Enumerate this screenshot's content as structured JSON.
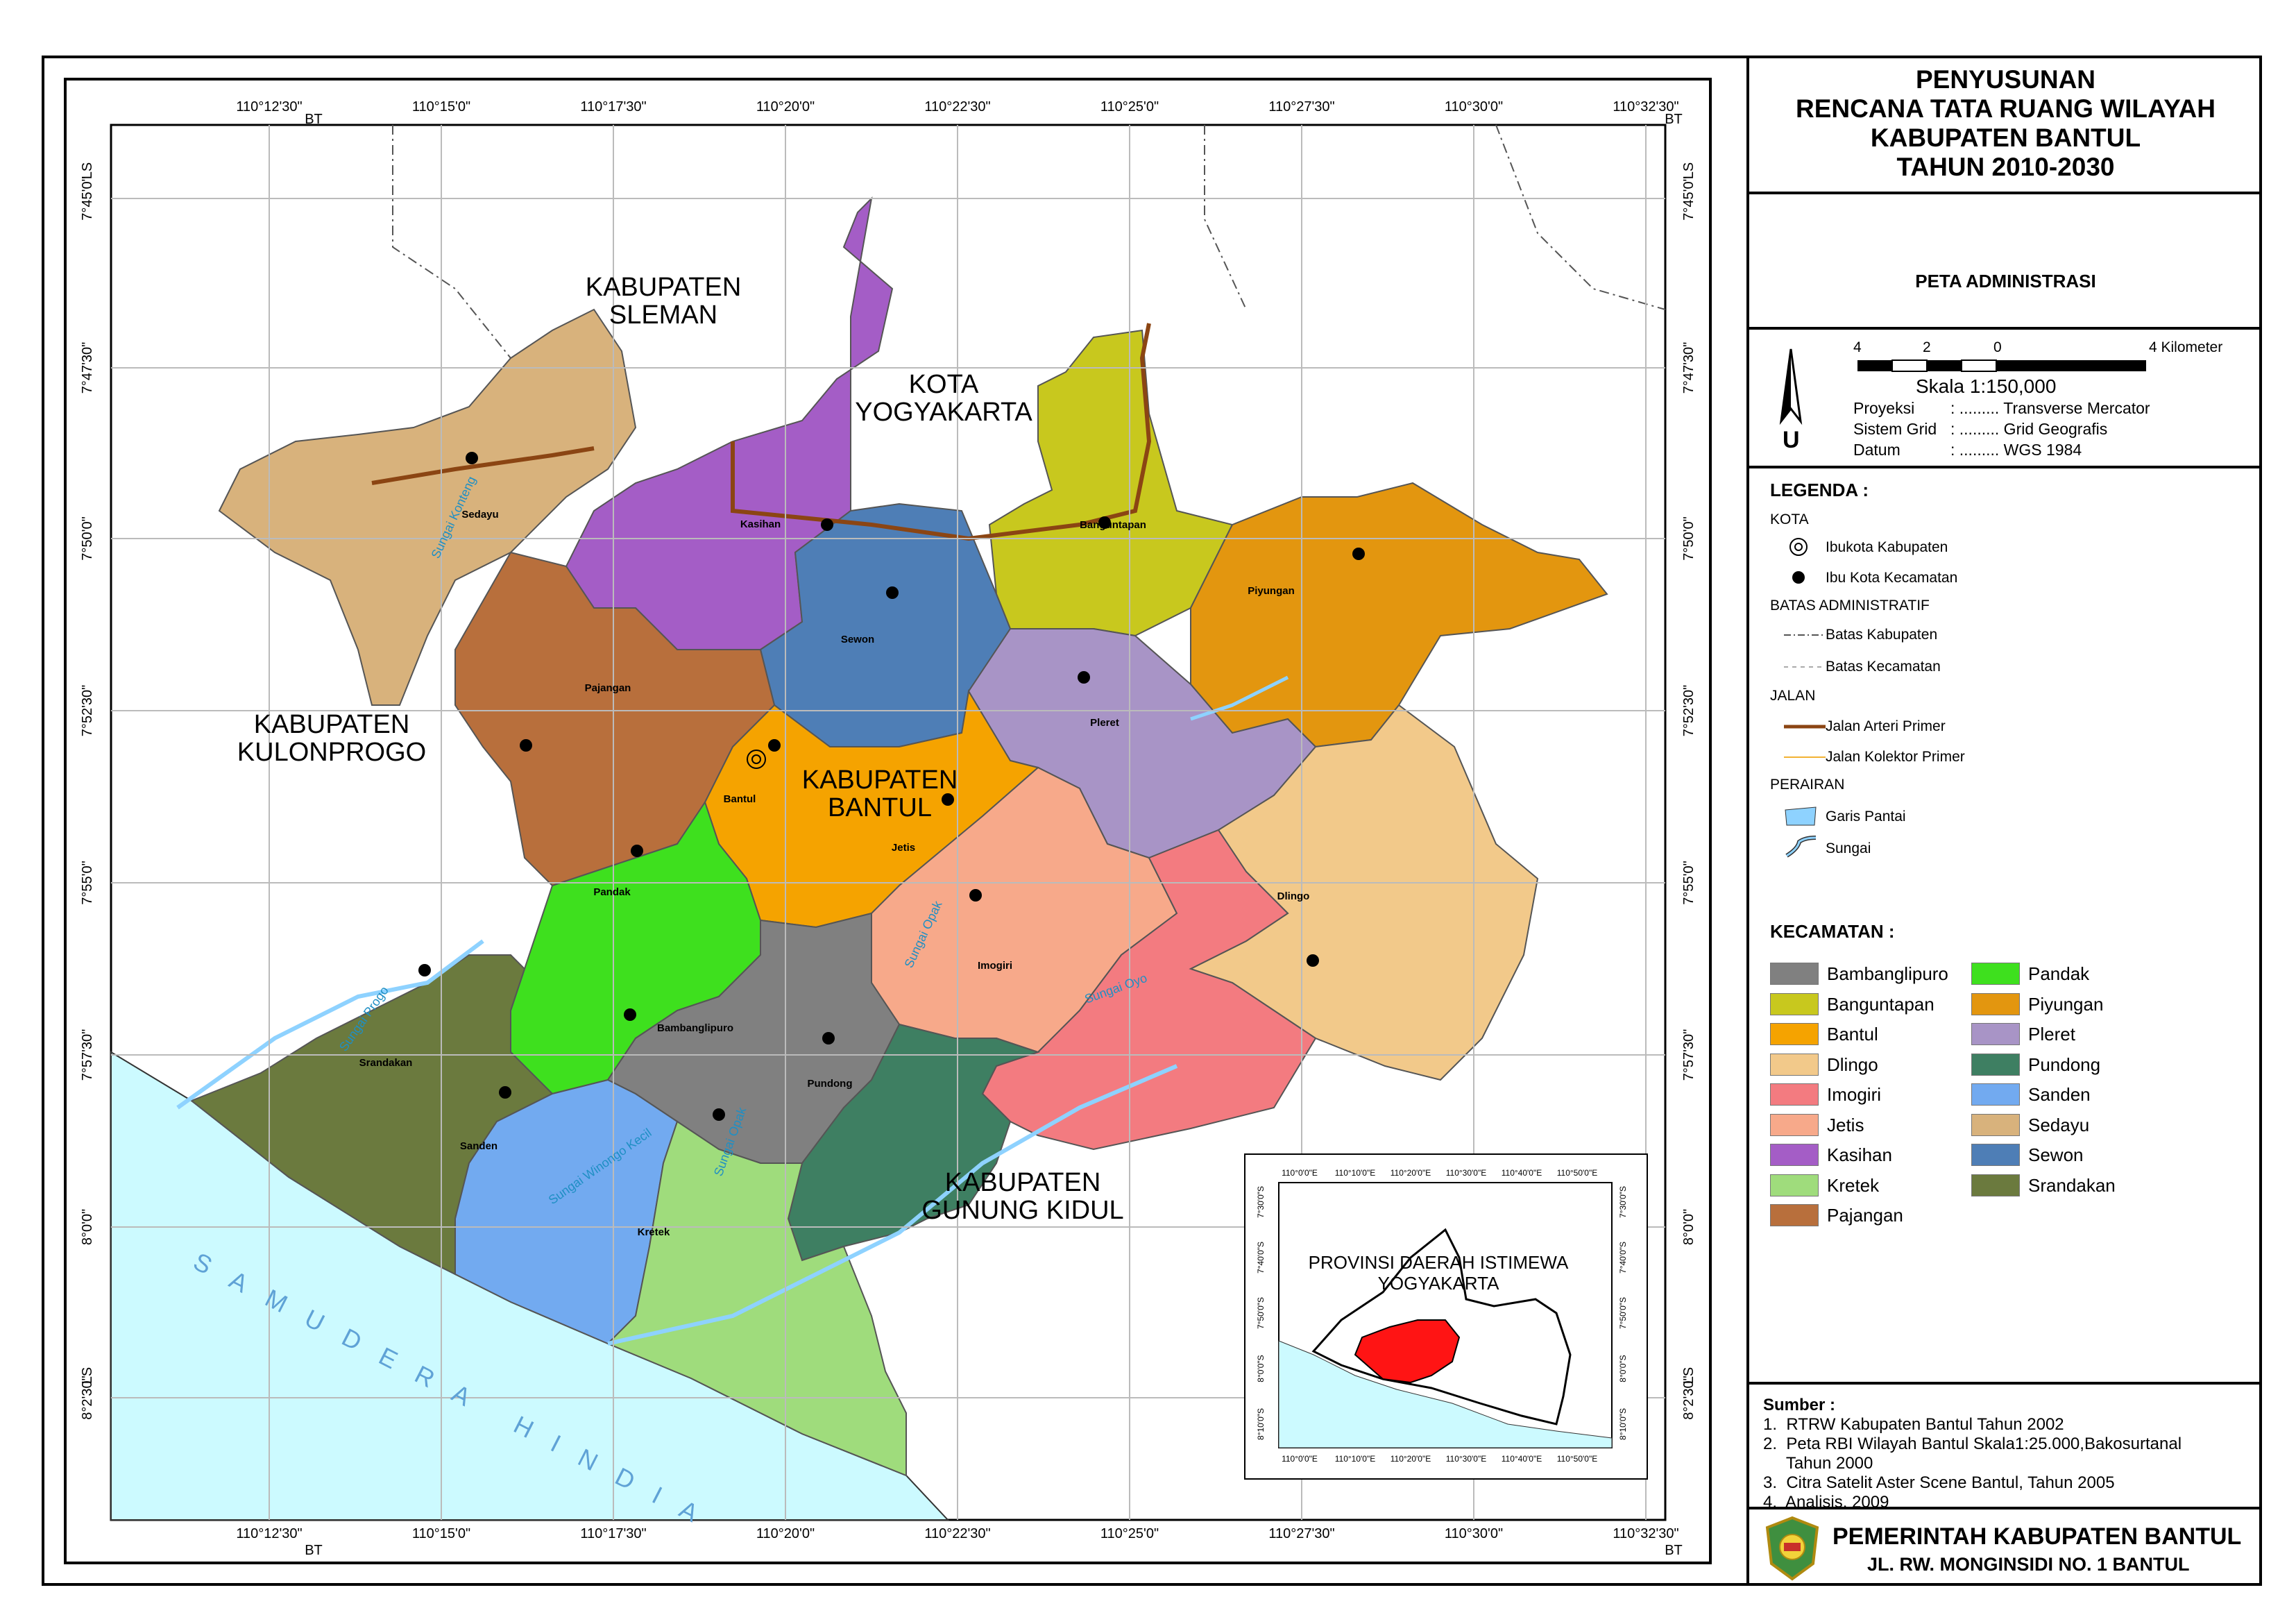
{
  "title": {
    "lines": [
      "PENYUSUNAN",
      "RENCANA TATA RUANG WILAYAH",
      "KABUPATEN BANTUL",
      "TAHUN 2010-2030"
    ],
    "map_name": "PETA ADMINISTRASI"
  },
  "scale": {
    "ticks": [
      "4",
      "2",
      "0",
      "4 Kilometer"
    ],
    "label": "Skala  1:150,000",
    "north": "U",
    "projection_rows": [
      {
        "k": "Proyeksi",
        "v": ": ......... Transverse Mercator"
      },
      {
        "k": "Sistem Grid",
        "v": ": ......... Grid Geografis"
      },
      {
        "k": "Datum",
        "v": ": ......... WGS 1984"
      }
    ]
  },
  "legend": {
    "heading": "LEGENDA :",
    "kota_heading": "KOTA",
    "ibukota_kab": "Ibukota Kabupaten",
    "ibukota_kec": "Ibu Kota Kecamatan",
    "batas_heading": "BATAS ADMINISTRATIF",
    "batas_kab": "Batas Kabupaten",
    "batas_kec": "Batas Kecamatan",
    "jalan_heading": "JALAN",
    "jalan_arteri": "Jalan Arteri Primer",
    "jalan_kolektor": "Jalan Kolektor Primer",
    "perairan_heading": "PERAIRAN",
    "garis_pantai": "Garis Pantai",
    "sungai": "Sungai",
    "kecamatan_heading": "KECAMATAN :",
    "kecamatan": [
      {
        "name": "Bambanglipuro",
        "color": "#808080"
      },
      {
        "name": "Banguntapan",
        "color": "#c8c81e"
      },
      {
        "name": "Bantul",
        "color": "#f5a300"
      },
      {
        "name": "Dlingo",
        "color": "#f2c98a"
      },
      {
        "name": "Imogiri",
        "color": "#f37b80"
      },
      {
        "name": "Jetis",
        "color": "#f7a98a"
      },
      {
        "name": "Kasihan",
        "color": "#a45dc6"
      },
      {
        "name": "Kretek",
        "color": "#9fdc7c"
      },
      {
        "name": "Pajangan",
        "color": "#b86f3c"
      },
      {
        "name": "Pandak",
        "color": "#3ee01e"
      },
      {
        "name": "Piyungan",
        "color": "#e3960f"
      },
      {
        "name": "Pleret",
        "color": "#a894c6"
      },
      {
        "name": "Pundong",
        "color": "#3e7f62"
      },
      {
        "name": "Sanden",
        "color": "#72aaf0"
      },
      {
        "name": "Sedayu",
        "color": "#d8b27c"
      },
      {
        "name": "Sewon",
        "color": "#4e7eb6"
      },
      {
        "name": "Srandakan",
        "color": "#6b7a3e"
      }
    ]
  },
  "sources": {
    "heading": "Sumber :",
    "items": [
      "1.  RTRW Kabupaten Bantul Tahun 2002",
      "2.  Peta RBI Wilayah Bantul Skala1:25.000,Bakosurtanal",
      "     Tahun 2000",
      "3.  Citra Satelit Aster Scene Bantul, Tahun 2005",
      "4.  Analisis, 2009"
    ]
  },
  "footer": {
    "line1": "PEMERINTAH KABUPATEN BANTUL",
    "line2": "JL. RW. MONGINSIDI NO. 1 BANTUL"
  },
  "map": {
    "lon_labels": [
      "110°12'30\"",
      "110°15'0\"",
      "110°17'30\"",
      "110°20'0\"",
      "110°22'30\"",
      "110°25'0\"",
      "110°27'30\"",
      "110°30'0\"",
      "110°32'30\""
    ],
    "bt": "BT",
    "lat_labels": [
      "7°45'0\"",
      "7°47'30\"",
      "7°50'0\"",
      "7°52'30\"",
      "7°55'0\"",
      "7°57'30\"",
      "8°0'0\"",
      "8°2'30\""
    ],
    "ls": "LS",
    "regions": {
      "sleman": "KABUPATEN\nSLEMAN",
      "yogya": "KOTA\nYOGYAKARTA",
      "kulonprogo": "KABUPATEN\nKULONPROGO",
      "bantul": "KABUPATEN\nBANTUL",
      "gunungkidul": "KABUPATEN\nGUNUNG KIDUL",
      "ocean": "SAMUDERA HINDIA"
    },
    "kec_labels": {
      "sedayu": "Sedayu",
      "kasihan": "Kasihan",
      "banguntapan": "Banguntapan",
      "piyungan": "Piyungan",
      "sewon": "Sewon",
      "pajangan": "Pajangan",
      "pleret": "Pleret",
      "bantul": "Bantul",
      "jetis": "Jetis",
      "dlingo": "Dlingo",
      "pandak": "Pandak",
      "imogiri": "Imogiri",
      "bambanglipuro": "Bambanglipuro",
      "pundong": "Pundong",
      "srandakan": "Srandakan",
      "sanden": "Sanden",
      "kretek": "Kretek"
    },
    "rivers": {
      "progo": "Sungai Progo",
      "konteng": "Sungai Konteng",
      "winongo": "Sungai Winongo Kecil",
      "opak": "Sungai Opak",
      "oyo": "Sungai Oyo",
      "opak2": "Sungai Opak"
    }
  },
  "inset": {
    "lon_labels": [
      "110°0'0\"E",
      "110°10'0\"E",
      "110°20'0\"E",
      "110°30'0\"E",
      "110°40'0\"E",
      "110°50'0\"E"
    ],
    "lat_labels": [
      "7°30'0\"S",
      "7°40'0\"S",
      "7°50'0\"S",
      "8°0'0\"S",
      "8°10'0\"S"
    ],
    "title_line1": "PROVINSI DAERAH ISTIMEWA",
    "title_line2": "YOGYAKARTA"
  }
}
